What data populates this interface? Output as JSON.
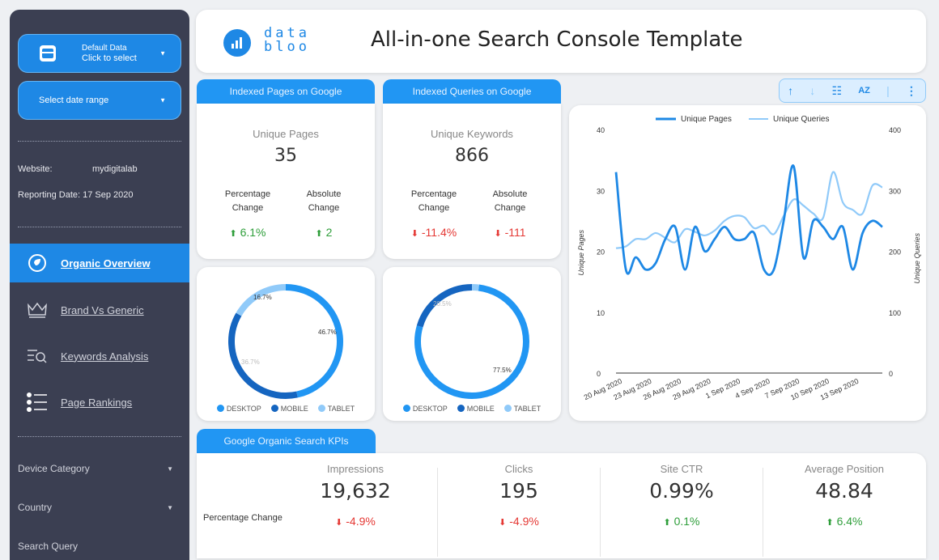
{
  "sidebar": {
    "data_source": {
      "line1": "Default Data",
      "line2": "Click to select"
    },
    "date_range": "Select date range",
    "website_label": "Website:",
    "website_value": "mydigitalab",
    "reporting_label": "Reporting Date:",
    "reporting_value": "17 Sep 2020",
    "nav": [
      {
        "label": "Organic Overview",
        "icon": "leaf-icon"
      },
      {
        "label": "Brand Vs Generic",
        "icon": "crown-icon"
      },
      {
        "label": "Keywords Analysis",
        "icon": "list-search-icon"
      },
      {
        "label": "Page Rankings",
        "icon": "bullet-list-icon"
      }
    ],
    "filters": [
      "Device Category",
      "Country",
      "Search Query"
    ]
  },
  "header": {
    "logo_line1": "data",
    "logo_line2": "bloo",
    "title": "All-in-one Search Console Template"
  },
  "indexed_pages": {
    "tab": "Indexed Pages on Google",
    "metric_label": "Unique Pages",
    "metric_value": "35",
    "pct_label_1": "Percentage",
    "pct_label_2": "Change",
    "abs_label_1": "Absolute",
    "abs_label_2": "Change",
    "pct_value": "6.1%",
    "abs_value": "2"
  },
  "indexed_queries": {
    "tab": "Indexed Queries on Google",
    "metric_label": "Unique Keywords",
    "metric_value": "866",
    "pct_label_1": "Percentage",
    "pct_label_2": "Change",
    "abs_label_1": "Absolute",
    "abs_label_2": "Change",
    "pct_value": "-11.4%",
    "abs_value": "-111"
  },
  "donut_legend": [
    "DESKTOP",
    "MOBILE",
    "TABLET"
  ],
  "colors": {
    "desktop": "#2196f3",
    "mobile": "#1565c0",
    "tablet": "#90caf9",
    "accent": "#1e88e5",
    "up": "#2e9e3a",
    "down": "#e53935"
  },
  "donut_pages": {
    "labels": [
      "46.7%",
      "36.7%",
      "16.7%"
    ]
  },
  "donut_queries": {
    "labels": [
      "77.5%",
      "20.5%"
    ]
  },
  "toolbar": {
    "icons": [
      "arrow-up-icon",
      "arrow-down-icon",
      "filter-settings-icon",
      "sort-az-icon",
      "more-vert-icon"
    ]
  },
  "kpi": {
    "tab": "Google Organic Search KPIs",
    "row_label": "Percentage Change",
    "items": [
      {
        "label": "Impressions",
        "value": "19,632",
        "change": "-4.9%"
      },
      {
        "label": "Clicks",
        "value": "195",
        "change": "-4.9%"
      },
      {
        "label": "Site CTR",
        "value": "0.99%",
        "change": "0.1%"
      },
      {
        "label": "Average Position",
        "value": "48.84",
        "change": "6.4%"
      }
    ]
  },
  "chart_data": [
    {
      "type": "pie",
      "title": "",
      "categories": [
        "DESKTOP",
        "MOBILE",
        "TABLET"
      ],
      "values": [
        46.7,
        36.7,
        16.7
      ],
      "legend": "bottom"
    },
    {
      "type": "pie",
      "title": "",
      "categories": [
        "DESKTOP",
        "MOBILE",
        "TABLET"
      ],
      "values": [
        77.5,
        20.5,
        2.0
      ],
      "legend": "bottom"
    },
    {
      "type": "line",
      "title": "",
      "x": [
        "20 Aug 2020",
        "21 Aug 2020",
        "22 Aug 2020",
        "23 Aug 2020",
        "24 Aug 2020",
        "25 Aug 2020",
        "26 Aug 2020",
        "27 Aug 2020",
        "28 Aug 2020",
        "29 Aug 2020",
        "30 Aug 2020",
        "31 Aug 2020",
        "1 Sep 2020",
        "2 Sep 2020",
        "3 Sep 2020",
        "4 Sep 2020",
        "5 Sep 2020",
        "6 Sep 2020",
        "7 Sep 2020",
        "8 Sep 2020",
        "9 Sep 2020",
        "10 Sep 2020",
        "11 Sep 2020",
        "12 Sep 2020",
        "13 Sep 2020",
        "14 Sep 2020",
        "15 Sep 2020",
        "16 Sep 2020"
      ],
      "x_tick_labels": [
        "20 Aug 2020",
        "23 Aug 2020",
        "26 Aug 2020",
        "29 Aug 2020",
        "1 Sep 2020",
        "4 Sep 2020",
        "7 Sep 2020",
        "10 Sep 2020",
        "13 Sep 2020"
      ],
      "series": [
        {
          "name": "Unique Pages",
          "axis": "left",
          "values": [
            33,
            17,
            19,
            17,
            18,
            22,
            24,
            17,
            24,
            20,
            22,
            24,
            22,
            22,
            23,
            17,
            17,
            25,
            34,
            19,
            25,
            24,
            22,
            24,
            17,
            23,
            25,
            24
          ]
        },
        {
          "name": "Unique Queries",
          "axis": "right",
          "values": [
            205,
            208,
            220,
            220,
            230,
            222,
            215,
            236,
            232,
            226,
            234,
            250,
            258,
            256,
            238,
            242,
            228,
            258,
            285,
            275,
            262,
            255,
            330,
            280,
            268,
            262,
            308,
            305
          ]
        }
      ],
      "ylabel": "Unique Pages",
      "ylim": [
        0,
        40
      ],
      "yticks": [
        0,
        10,
        20,
        30,
        40
      ],
      "y2label": "Unique Queries",
      "y2lim": [
        0,
        400
      ],
      "y2ticks": [
        0,
        100,
        200,
        300,
        400
      ],
      "legend": "top-center",
      "grid": false
    }
  ]
}
